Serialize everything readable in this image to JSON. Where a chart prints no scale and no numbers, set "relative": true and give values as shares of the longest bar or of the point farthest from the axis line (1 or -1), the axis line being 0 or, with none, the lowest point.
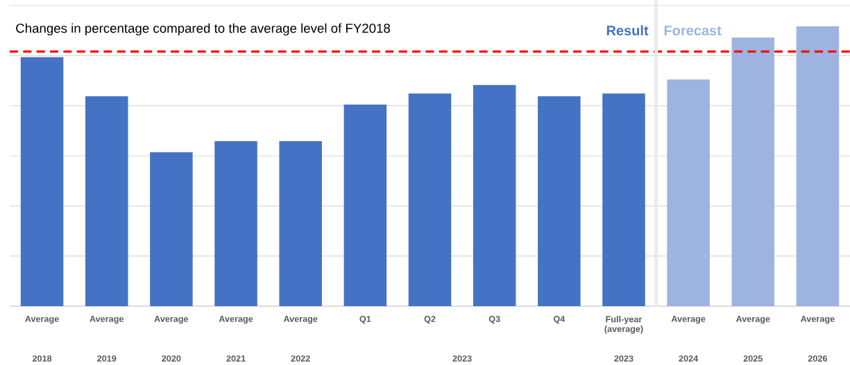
{
  "chart_data": {
    "type": "bar",
    "relative": true,
    "title": "Changes in percentage compared to the average level of FY2018",
    "categories": [
      "Average",
      "Average",
      "Average",
      "Average",
      "Average",
      "Q1",
      "Q2",
      "Q3",
      "Q4",
      "Full-year (average)",
      "Average",
      "Average",
      "Average"
    ],
    "series": [
      {
        "name": "Result",
        "color": "#4472c4",
        "values": [
          0.89,
          0.75,
          0.55,
          0.59,
          0.59,
          0.72,
          0.76,
          0.79,
          0.75,
          0.76,
          null,
          null,
          null
        ]
      },
      {
        "name": "Forecast",
        "color": "#9db3e0",
        "values": [
          null,
          null,
          null,
          null,
          null,
          null,
          null,
          null,
          null,
          null,
          0.81,
          0.96,
          1.0
        ]
      }
    ],
    "annotations": [
      "2018",
      "2019",
      "2020",
      "2021",
      "2022",
      "2023",
      "2023",
      "2024",
      "2025",
      "2026"
    ],
    "ref_lines": [
      {
        "axis": "y",
        "value": 0.91,
        "color": "#ff0000",
        "line_style": "dashed"
      }
    ],
    "grid": "y",
    "legend": "top right"
  }
}
